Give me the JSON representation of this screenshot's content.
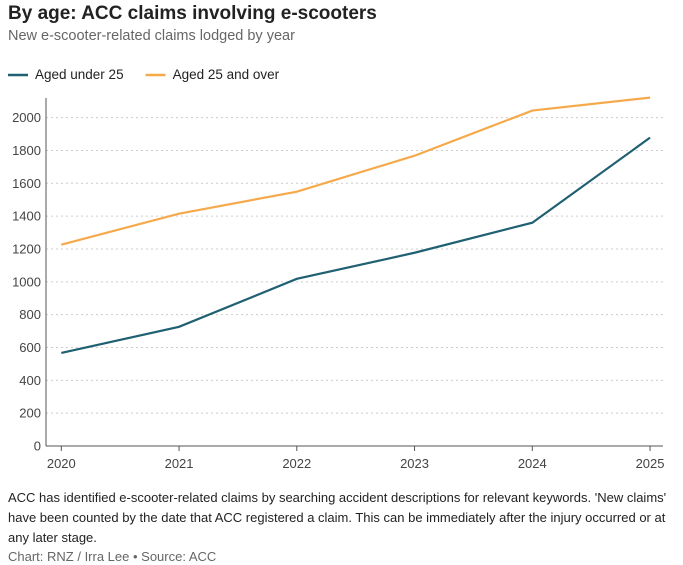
{
  "chart_data": {
    "type": "line",
    "title": "By age: ACC claims involving e-scooters",
    "subtitle": "New e-scooter-related claims lodged by year",
    "x": [
      2020,
      2021,
      2022,
      2023,
      2024,
      2025
    ],
    "xlim": [
      2019.87,
      2025.11
    ],
    "xticks": [
      2020,
      2021,
      2022,
      2023,
      2024,
      2025
    ],
    "ylim": [
      0,
      2150
    ],
    "yticks": [
      0,
      200,
      400,
      600,
      800,
      1000,
      1200,
      1400,
      1600,
      1800,
      2000
    ],
    "grid": true,
    "legend": "top",
    "series": [
      {
        "name": "Aged under 25",
        "color": "#1f6072",
        "values": [
          567,
          726,
          1018,
          1177,
          1360,
          1878
        ]
      },
      {
        "name": "Aged 25 and over",
        "color": "#f5a94b",
        "values": [
          1226,
          1415,
          1549,
          1768,
          2043,
          2122
        ]
      }
    ],
    "note": "ACC has identified e-scooter-related claims by searching accident descriptions for relevant keywords. 'New claims' have been counted by the date that ACC registered a claim. This can be immediately after the injury occurred or at any later stage.",
    "credit": "Chart: RNZ / Irra Lee • Source: ACC"
  }
}
